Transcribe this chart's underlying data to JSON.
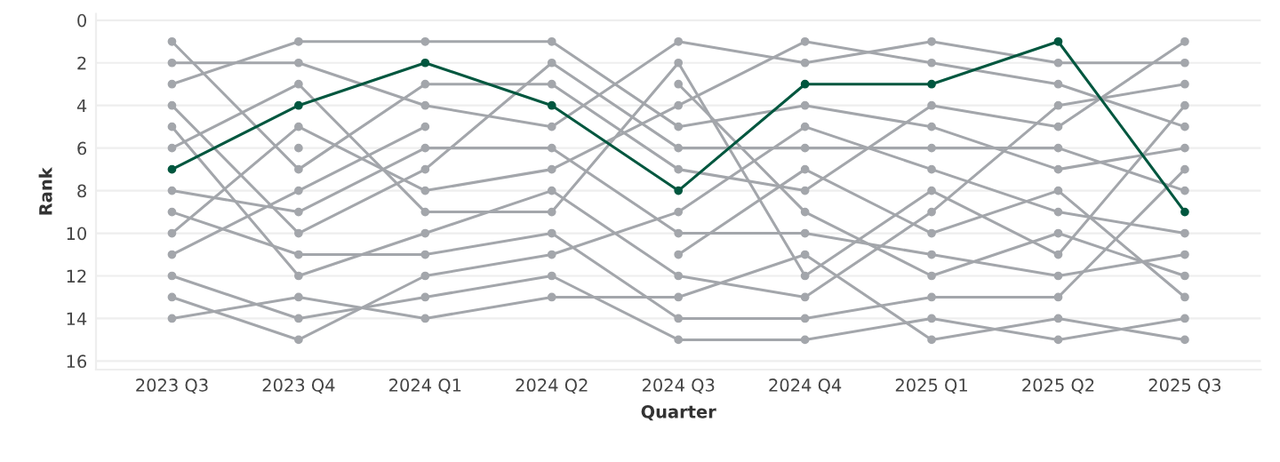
{
  "chart_data": {
    "type": "line",
    "xlabel": "Quarter",
    "ylabel": "Rank",
    "categories": [
      "2023 Q3",
      "2023 Q4",
      "2024 Q1",
      "2024 Q2",
      "2024 Q3",
      "2024 Q4",
      "2025 Q1",
      "2025 Q2",
      "2025 Q3"
    ],
    "ylim": [
      16.4,
      -0.3
    ],
    "yticks": [
      0,
      2,
      4,
      6,
      8,
      10,
      12,
      14,
      16
    ],
    "grid": "y",
    "marker": "circle",
    "line_style": "solid",
    "series": [
      {
        "color": "#a3a6ab",
        "values": [
          1,
          7,
          3,
          3,
          7,
          8,
          4,
          5,
          1
        ]
      },
      {
        "color": "#a3a6ab",
        "values": [
          2,
          2,
          4,
          5,
          1,
          2,
          1,
          2,
          2
        ]
      },
      {
        "color": "#a3a6ab",
        "values": [
          3,
          1,
          1,
          1,
          5,
          4,
          5,
          7,
          6
        ]
      },
      {
        "color": "#a3a6ab",
        "values": [
          4,
          10,
          7,
          2,
          6,
          6,
          6,
          6,
          8
        ]
      },
      {
        "color": "#a3a6ab",
        "values": [
          5,
          12,
          10,
          8,
          12,
          13,
          9,
          4,
          3
        ]
      },
      {
        "color": "#a3a6ab",
        "values": [
          6,
          3,
          9,
          9,
          2,
          12,
          8,
          11,
          4
        ]
      },
      {
        "color": "#a3a6ab",
        "values": [
          8,
          9,
          6,
          6,
          10,
          10,
          11,
          12,
          11
        ]
      },
      {
        "color": "#a3a6ab",
        "values": [
          9,
          11,
          11,
          10,
          14,
          14,
          13,
          13,
          7
        ]
      },
      {
        "color": "#a3a6ab",
        "values": [
          10,
          5,
          8,
          7,
          4,
          1,
          2,
          3,
          5
        ]
      },
      {
        "color": "#a3a6ab",
        "values": [
          11,
          8,
          5,
          null,
          null,
          null,
          null,
          null,
          null
        ]
      },
      {
        "color": "#a3a6ab",
        "values": [
          12,
          14,
          13,
          12,
          15,
          15,
          14,
          15,
          14
        ]
      },
      {
        "color": "#a3a6ab",
        "values": [
          13,
          15,
          12,
          11,
          9,
          5,
          7,
          9,
          10
        ]
      },
      {
        "color": "#a3a6ab",
        "values": [
          14,
          13,
          14,
          13,
          13,
          11,
          15,
          14,
          15
        ]
      },
      {
        "color": "#a3a6ab",
        "values": [
          null,
          6,
          null,
          null,
          null,
          null,
          null,
          null,
          null
        ]
      },
      {
        "color": "#a3a6ab",
        "values": [
          null,
          null,
          null,
          null,
          3,
          9,
          12,
          10,
          12
        ]
      },
      {
        "color": "#a3a6ab",
        "values": [
          null,
          null,
          null,
          null,
          11,
          7,
          10,
          8,
          13
        ]
      },
      {
        "color": "#00573f",
        "values": [
          7,
          4,
          2,
          4,
          8,
          3,
          3,
          1,
          9
        ]
      }
    ]
  }
}
